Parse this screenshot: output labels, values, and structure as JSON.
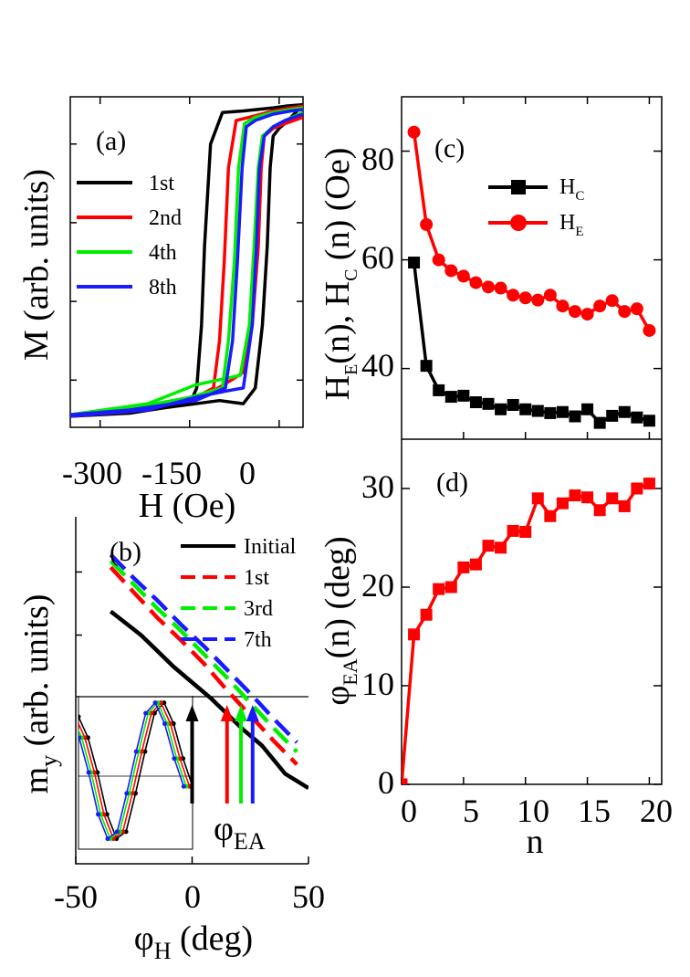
{
  "colors": {
    "black": "#000000",
    "red": "#ff0000",
    "green": "#00ee00",
    "blue": "#1a1aff"
  },
  "chart_data": [
    {
      "id": "a",
      "panel_label": "(a)",
      "type": "line",
      "xlabel_main": "H",
      "xlabel_unit": "(Oe)",
      "ylabel_main": "M",
      "ylabel_unit": "(arb. units)",
      "xlim": [
        -350,
        40
      ],
      "ylim": [
        -1.05,
        1.05
      ],
      "xticks": [
        -300,
        -150,
        0
      ],
      "xtick_labels": [
        "-300",
        "-150",
        "0"
      ],
      "yticks_labeled": false,
      "series": [
        {
          "name": "1st",
          "color": "#000000",
          "down_x": [
            40,
            10,
            -10,
            -60,
            -95,
            -115,
            -125,
            -130,
            -138,
            -150,
            -250,
            -350
          ],
          "down_y": [
            1.0,
            0.99,
            0.98,
            0.96,
            0.95,
            0.75,
            0.1,
            -0.4,
            -0.8,
            -0.9,
            -0.96,
            -0.98
          ],
          "up_x": [
            -350,
            -200,
            -100,
            -60,
            -40,
            -28,
            -20,
            -15,
            -10,
            0,
            15,
            40
          ],
          "up_y": [
            -0.98,
            -0.93,
            -0.88,
            -0.9,
            -0.8,
            -0.4,
            0.1,
            0.6,
            0.8,
            0.85,
            0.9,
            1.0
          ]
        },
        {
          "name": "2nd",
          "color": "#ff0000",
          "down_x": [
            40,
            20,
            -10,
            -50,
            -72,
            -85,
            -92,
            -100,
            -110,
            -150,
            -250,
            -350
          ],
          "down_y": [
            0.99,
            0.98,
            0.96,
            0.92,
            0.9,
            0.6,
            0.0,
            -0.5,
            -0.8,
            -0.88,
            -0.95,
            -0.98
          ],
          "up_x": [
            -350,
            -200,
            -120,
            -80,
            -60,
            -45,
            -35,
            -30,
            -25,
            -10,
            10,
            40
          ],
          "up_y": [
            -0.98,
            -0.9,
            -0.84,
            -0.75,
            -0.7,
            -0.4,
            0.1,
            0.6,
            0.8,
            0.85,
            0.88,
            0.92
          ]
        },
        {
          "name": "4th",
          "color": "#00ee00",
          "down_x": [
            40,
            20,
            -10,
            -40,
            -58,
            -68,
            -75,
            -85,
            -95,
            -150,
            -250,
            -350
          ],
          "down_y": [
            0.98,
            0.97,
            0.95,
            0.92,
            0.88,
            0.6,
            0.0,
            -0.5,
            -0.8,
            -0.86,
            -0.93,
            -0.97
          ],
          "up_x": [
            -350,
            -220,
            -140,
            -90,
            -65,
            -50,
            -42,
            -35,
            -28,
            -10,
            10,
            40
          ],
          "up_y": [
            -0.97,
            -0.9,
            -0.78,
            -0.74,
            -0.72,
            -0.4,
            0.1,
            0.6,
            0.8,
            0.86,
            0.9,
            0.95
          ]
        },
        {
          "name": "8th",
          "color": "#1a1aff",
          "down_x": [
            40,
            20,
            -10,
            -40,
            -55,
            -62,
            -70,
            -78,
            -90,
            -140,
            -250,
            -350
          ],
          "down_y": [
            0.97,
            0.96,
            0.94,
            0.9,
            0.86,
            0.6,
            0.0,
            -0.5,
            -0.8,
            -0.88,
            -0.94,
            -0.97
          ],
          "up_x": [
            -350,
            -220,
            -140,
            -90,
            -60,
            -45,
            -38,
            -33,
            -25,
            -10,
            10,
            40
          ],
          "up_y": [
            -0.98,
            -0.94,
            -0.86,
            -0.82,
            -0.8,
            -0.4,
            0.1,
            0.6,
            0.8,
            0.86,
            0.9,
            0.94
          ]
        }
      ]
    },
    {
      "id": "b",
      "panel_label": "(b)",
      "type": "line",
      "xlabel_main": "φ",
      "xlabel_sub": "H",
      "xlabel_unit": "(deg)",
      "ylabel_main": "m",
      "ylabel_sub": "y",
      "ylabel_unit": "(arb. units)",
      "xlim": [
        -50,
        50
      ],
      "ylim": [
        -1.1,
        1.1
      ],
      "xticks": [
        -50,
        0,
        50
      ],
      "xtick_labels": [
        "-50",
        "0",
        "50"
      ],
      "zero_line_y": 0,
      "annotation_main": "φ",
      "annotation_sub": "EA",
      "series": [
        {
          "name": "Initial",
          "color": "#000000",
          "dashed": false,
          "x": [
            -35,
            -28,
            -22,
            -15,
            -8,
            0,
            8,
            15,
            22,
            30,
            40,
            50
          ],
          "y": [
            0.5,
            0.42,
            0.35,
            0.25,
            0.15,
            0.05,
            -0.05,
            -0.15,
            -0.25,
            -0.35,
            -0.53,
            -0.62
          ]
        },
        {
          "name": "1st",
          "color": "#ff0000",
          "dashed": true,
          "x": [
            -35,
            -25,
            -15,
            -5,
            5,
            15,
            25,
            35,
            45
          ],
          "y": [
            0.78,
            0.62,
            0.46,
            0.32,
            0.17,
            0.0,
            -0.16,
            -0.32,
            -0.47
          ]
        },
        {
          "name": "3rd",
          "color": "#00ee00",
          "dashed": true,
          "x": [
            -35,
            -25,
            -15,
            -5,
            5,
            15,
            25,
            35,
            45
          ],
          "y": [
            0.82,
            0.67,
            0.52,
            0.38,
            0.23,
            0.08,
            -0.08,
            -0.24,
            -0.39
          ]
        },
        {
          "name": "7th",
          "color": "#1a1aff",
          "dashed": true,
          "x": [
            -35,
            -25,
            -15,
            -5,
            5,
            15,
            25,
            35,
            45
          ],
          "y": [
            0.86,
            0.71,
            0.57,
            0.42,
            0.28,
            0.13,
            -0.02,
            -0.18,
            -0.33
          ]
        }
      ],
      "arrows_x": [
        0,
        15,
        21,
        26
      ],
      "inset": {
        "type": "line",
        "xlim": [
          0,
          360
        ],
        "ylim": [
          -1.1,
          1.1
        ],
        "x": [
          0,
          30,
          60,
          90,
          120,
          150,
          180,
          210,
          240,
          270,
          300,
          330,
          360
        ],
        "y": [
          0.8,
          0.5,
          0.0,
          -0.6,
          -0.95,
          -0.85,
          -0.3,
          0.3,
          0.85,
          1.0,
          0.7,
          0.2,
          -0.2
        ]
      }
    },
    {
      "id": "c",
      "panel_label": "(c)",
      "type": "line",
      "xlim": [
        0,
        21
      ],
      "ylim": [
        27,
        90
      ],
      "yticks": [
        40,
        60,
        80
      ],
      "ytick_labels": [
        "40",
        "60",
        "80"
      ],
      "ylabel_parts": [
        {
          "text": "H",
          "sub": false
        },
        {
          "text": "E",
          "sub": true
        },
        {
          "text": "(n), H",
          "sub": false
        },
        {
          "text": "C",
          "sub": true
        },
        {
          "text": " (n) (Oe)",
          "sub": false
        }
      ],
      "series": [
        {
          "name": "H",
          "name_sub": "C",
          "color": "#000000",
          "marker": "square",
          "x": [
            1,
            2,
            3,
            4,
            5,
            6,
            7,
            8,
            9,
            10,
            11,
            12,
            13,
            14,
            15,
            16,
            17,
            18,
            19,
            20
          ],
          "y": [
            59.5,
            40.5,
            36,
            34.8,
            35,
            33.8,
            33.5,
            32.5,
            33.3,
            32.5,
            32.2,
            31.8,
            32,
            31.2,
            32.5,
            30,
            31.3,
            32,
            31,
            30.4
          ]
        },
        {
          "name": "H",
          "name_sub": "E",
          "color": "#ff0000",
          "marker": "circle",
          "x": [
            1,
            2,
            3,
            4,
            5,
            6,
            7,
            8,
            9,
            10,
            11,
            12,
            13,
            14,
            15,
            16,
            17,
            18,
            19,
            20
          ],
          "y": [
            83.5,
            66.5,
            60,
            58,
            57,
            55.8,
            55,
            54.8,
            53.5,
            53,
            52.6,
            53.5,
            51.5,
            50.5,
            50,
            51.5,
            52.5,
            50.5,
            51,
            47
          ]
        }
      ]
    },
    {
      "id": "d",
      "panel_label": "(d)",
      "type": "line",
      "xlabel": "n",
      "xlim": [
        0,
        21
      ],
      "ylim": [
        0,
        35
      ],
      "xticks": [
        0,
        5,
        10,
        15,
        20
      ],
      "xtick_labels": [
        "0",
        "5",
        "10",
        "15",
        "20"
      ],
      "yticks": [
        0,
        10,
        20,
        30
      ],
      "ytick_labels": [
        "0",
        "10",
        "20",
        "30"
      ],
      "ylabel_main": "φ",
      "ylabel_sub": "EA",
      "ylabel_unit": "(n) (deg)",
      "series": [
        {
          "color": "#ff0000",
          "marker": "square",
          "x": [
            0,
            1,
            2,
            3,
            4,
            5,
            6,
            7,
            8,
            9,
            10,
            11,
            12,
            13,
            14,
            15,
            16,
            17,
            18,
            19,
            20
          ],
          "y": [
            0,
            15.2,
            17.2,
            19.8,
            20,
            22,
            22.3,
            24.2,
            24,
            25.7,
            25.6,
            29,
            27.2,
            28.5,
            29.3,
            29.1,
            27.8,
            29,
            28.2,
            30,
            30.5
          ]
        }
      ]
    }
  ]
}
